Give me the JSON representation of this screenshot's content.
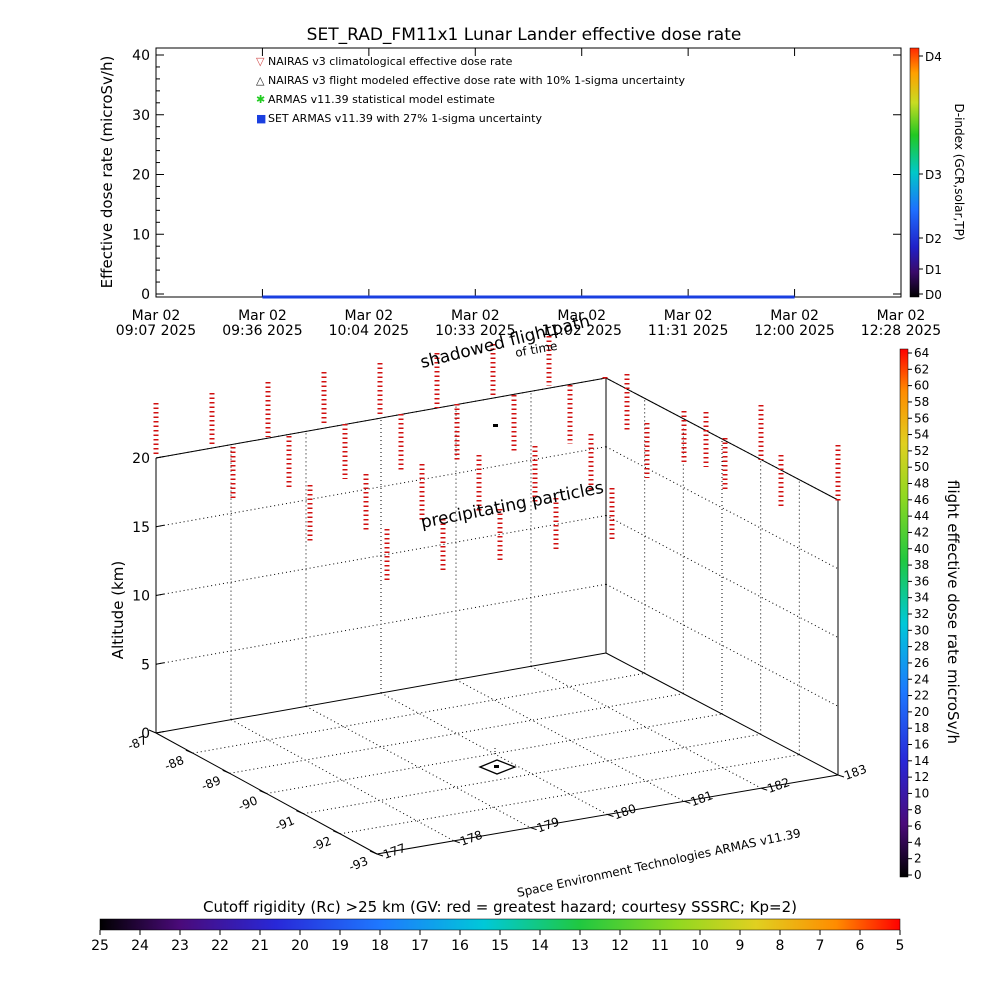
{
  "title": "SET_RAD_FM11x1  Lunar Lander effective dose rate",
  "top_panel": {
    "ylabel": "Effective dose rate (microSv/h)",
    "yticks": [
      "0",
      "10",
      "20",
      "30",
      "40"
    ],
    "xticks": [
      {
        "top": "Mar 02",
        "bottom": "09:07 2025"
      },
      {
        "top": "Mar 02",
        "bottom": "09:36 2025"
      },
      {
        "top": "Mar 02",
        "bottom": "10:04 2025"
      },
      {
        "top": "Mar 02",
        "bottom": "10:33 2025"
      },
      {
        "top": "Mar 02",
        "bottom": "11:02 2025"
      },
      {
        "top": "Mar 02",
        "bottom": "11:31 2025"
      },
      {
        "top": "Mar 02",
        "bottom": "12:00 2025"
      },
      {
        "top": "Mar 02",
        "bottom": "12:28 2025"
      }
    ],
    "legend": [
      {
        "label": "NAIRAS v3 climatological effective dose rate",
        "color": "#d04a4a",
        "marker": "▽"
      },
      {
        "label": "NAIRAS v3 flight modeled effective dose rate with 10% 1-sigma uncertainty",
        "color": "#222222",
        "marker": "△"
      },
      {
        "label": "ARMAS v11.39 statistical model estimate",
        "color": "#22cc22",
        "marker": "✱"
      },
      {
        "label": "SET ARMAS v11.39 with 27% 1-sigma uncertainty",
        "color": "#1a3fe0",
        "marker": "■"
      }
    ],
    "right_axis_label": "D-index (GCR,solar,TP)",
    "right_ticks": [
      "D0",
      "D1",
      "D2",
      "D3",
      "D4"
    ]
  },
  "bottom_panel": {
    "zlabel": "Altitude (km)",
    "zticks": [
      "0",
      "5",
      "10",
      "15",
      "20"
    ],
    "lat_ticks": [
      "-87",
      "-88",
      "-89",
      "-90",
      "-91",
      "-92",
      "-93"
    ],
    "lon_ticks": [
      "177",
      "178",
      "179",
      "180",
      "181",
      "182",
      "183"
    ],
    "annotations": {
      "shadowed": "shadowed flightpath",
      "time": "of time",
      "precip": "precipitating particles",
      "credit": "Space Environment Technologies ARMAS v11.39"
    },
    "right_colorbar_label": "flight effective dose rate microSv/h",
    "right_colorbar_ticks": [
      "0",
      "2",
      "4",
      "6",
      "8",
      "10",
      "12",
      "14",
      "16",
      "18",
      "20",
      "22",
      "24",
      "26",
      "28",
      "30",
      "32",
      "34",
      "36",
      "38",
      "40",
      "42",
      "44",
      "46",
      "48",
      "50",
      "52",
      "54",
      "56",
      "58",
      "60",
      "62",
      "64"
    ],
    "bottom_colorbar_label": "Cutoff rigidity (Rc) >25 km (GV: red = greatest hazard; courtesy SSSRC; Kp=2)",
    "bottom_colorbar_ticks": [
      "25",
      "24",
      "23",
      "22",
      "21",
      "20",
      "19",
      "18",
      "17",
      "16",
      "15",
      "14",
      "13",
      "12",
      "11",
      "10",
      "9",
      "8",
      "7",
      "6",
      "5"
    ]
  },
  "chart_data": [
    {
      "type": "line",
      "title": "SET_RAD_FM11x1  Lunar Lander effective dose rate",
      "xlabel": "",
      "ylabel": "Effective dose rate (microSv/h)",
      "x_range": [
        "Mar 02 09:07 2025",
        "Mar 02 12:28 2025"
      ],
      "ylim": [
        0,
        40
      ],
      "series": [
        {
          "name": "SET ARMAS v11.39 with 27% 1-sigma uncertainty",
          "x": [
            "09:36",
            "12:00"
          ],
          "values": [
            0,
            0
          ]
        }
      ],
      "legend": "top-left",
      "grid": false
    },
    {
      "type": "scatter",
      "title": "",
      "xlabel": "",
      "ylabel": "Altitude (km)",
      "zlim": [
        0,
        20
      ],
      "lat_range": [
        -87,
        -93
      ],
      "lon_range": [
        177,
        183
      ],
      "grid": true
    }
  ]
}
